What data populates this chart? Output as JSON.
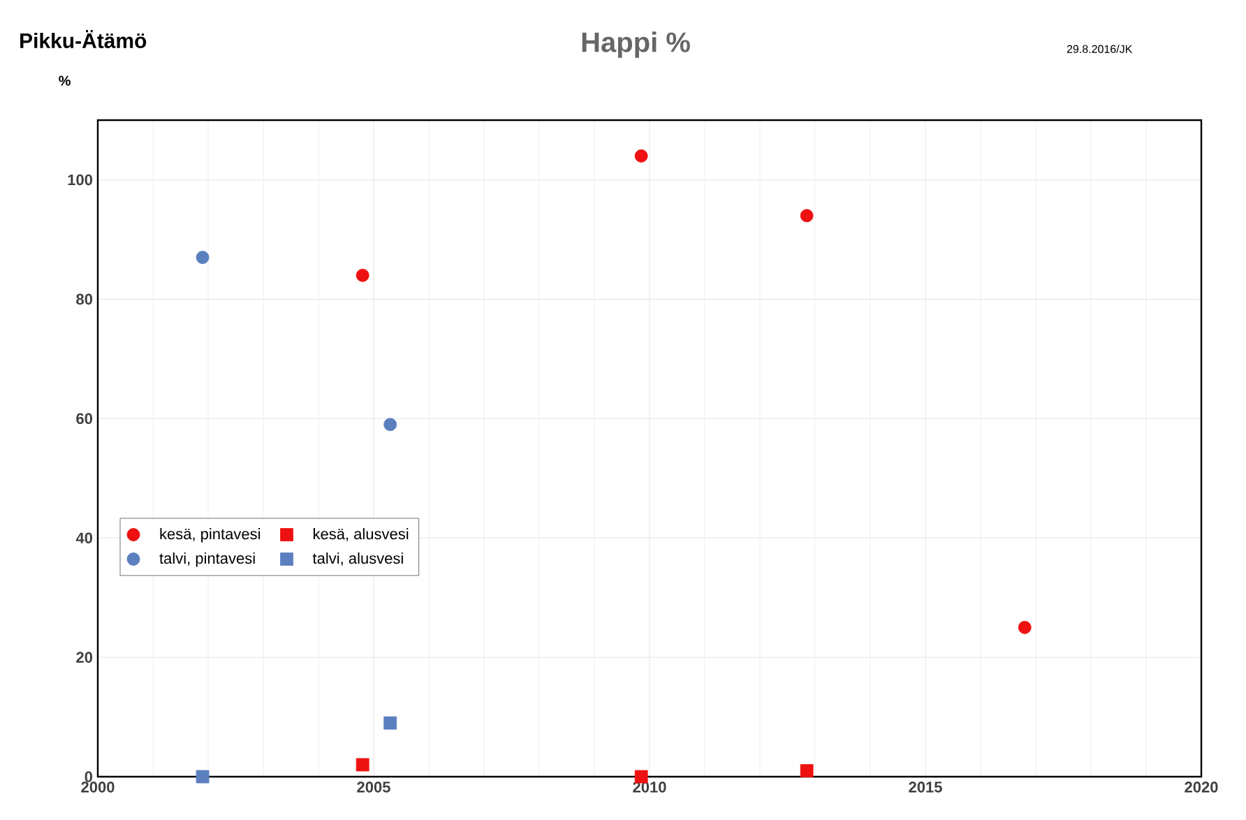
{
  "chart_data": {
    "type": "scatter",
    "title": "Happi %",
    "ylabel": "%",
    "annotations": [
      "Pikku-Ätämö",
      "29.8.2016/JK"
    ],
    "xlim": [
      2000,
      2020
    ],
    "xticks": [
      2000,
      2005,
      2010,
      2015,
      2020
    ],
    "ylim": [
      0,
      110
    ],
    "yticks": [
      0,
      20,
      40,
      60,
      80,
      100
    ],
    "grid": true,
    "legend": "left",
    "series": [
      {
        "name": "kesä, pintavesi",
        "color": "#ee1111",
        "marker": "circle",
        "x": [
          2004.8,
          2009.85,
          2012.85,
          2016.8
        ],
        "values": [
          84,
          104,
          94,
          25
        ]
      },
      {
        "name": "kesä, alusvesi",
        "color": "#ee1111",
        "marker": "square",
        "x": [
          2004.8,
          2009.85,
          2012.85
        ],
        "values": [
          2,
          0,
          1
        ]
      },
      {
        "name": "talvi, pintavesi",
        "color": "#5b7fbf",
        "marker": "circle",
        "x": [
          2001.9,
          2005.3
        ],
        "values": [
          87,
          59
        ]
      },
      {
        "name": "talvi, alusvesi",
        "color": "#5b7fbf",
        "marker": "square",
        "x": [
          2001.9,
          2005.3
        ],
        "values": [
          0,
          9
        ]
      }
    ]
  }
}
